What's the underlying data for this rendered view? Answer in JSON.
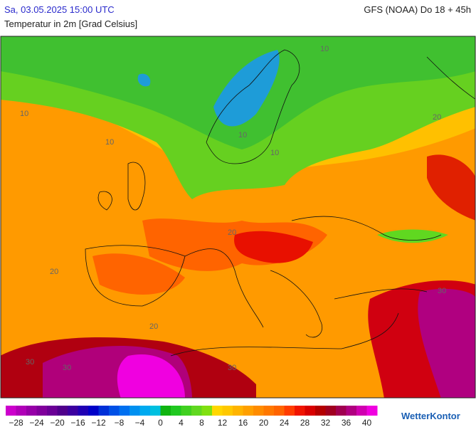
{
  "header": {
    "datetime": "Sa, 03.05.2025 15:00 UTC",
    "model": "GFS (NOAA) Do 18 + 45h",
    "subtitle": "Temperatur in 2m [Grad Celsius]"
  },
  "map": {
    "contour_labels": [
      10,
      10,
      10,
      10,
      10,
      20,
      20,
      20,
      20,
      30,
      30,
      30,
      30
    ]
  },
  "colorbar": {
    "range": [
      -30,
      42
    ],
    "colors": [
      "#cc00cc",
      "#b000b8",
      "#9600a8",
      "#80009c",
      "#6a0096",
      "#50008c",
      "#3c00a0",
      "#2000b4",
      "#0000c8",
      "#0030d8",
      "#0050e6",
      "#0070f0",
      "#0090f0",
      "#00aaf0",
      "#00c0e0",
      "#10b410",
      "#20c820",
      "#40d020",
      "#60d820",
      "#80e010",
      "#ffd700",
      "#ffc800",
      "#ffb400",
      "#ffa000",
      "#ff8c00",
      "#ff7800",
      "#ff6400",
      "#ff3c00",
      "#f01400",
      "#d80000",
      "#b40000",
      "#a00020",
      "#a00050",
      "#b00080",
      "#d000b0",
      "#f000e0"
    ],
    "ticks": [
      {
        "value": -28,
        "label": "−28"
      },
      {
        "value": -24,
        "label": "−24"
      },
      {
        "value": -20,
        "label": "−20"
      },
      {
        "value": -16,
        "label": "−16"
      },
      {
        "value": -12,
        "label": "−12"
      },
      {
        "value": -8,
        "label": "−8"
      },
      {
        "value": -4,
        "label": "−4"
      },
      0,
      4,
      8,
      12,
      16,
      20,
      24,
      28,
      32,
      36,
      40
    ]
  },
  "brand": "WetterKontor"
}
